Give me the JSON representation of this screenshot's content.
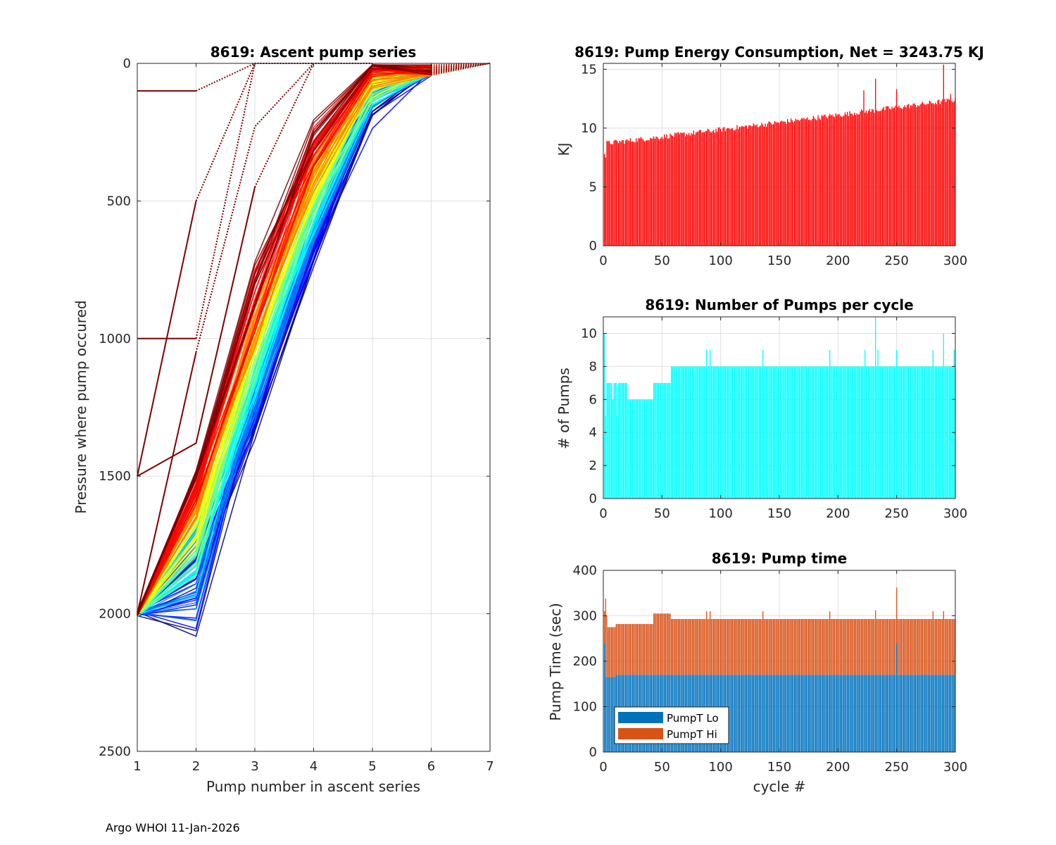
{
  "footer": "Argo WHOI 11-Jan-2026",
  "chart_data": [
    {
      "type": "line",
      "title": "8619: Ascent pump series",
      "xlabel": "Pump number in ascent series",
      "ylabel": "Pressure where pump occured",
      "xlim": [
        1,
        7
      ],
      "ylim": [
        0,
        2500
      ],
      "y_reversed": true,
      "xticks": [
        "1",
        "2",
        "3",
        "4",
        "5",
        "6",
        "7"
      ],
      "yticks": [
        "0",
        "500",
        "1000",
        "1500",
        "2000",
        "2500"
      ],
      "colormap": "jet (colored by cycle number)",
      "series": [
        {
          "name": "dark-red-a",
          "color": "#800000",
          "x": [
            1,
            2,
            3
          ],
          "y": [
            100,
            100,
            0
          ],
          "dotted_from": 2
        },
        {
          "name": "dark-red-b",
          "color": "#800000",
          "x": [
            1,
            2,
            3
          ],
          "y": [
            1000,
            1000,
            0
          ],
          "dotted_from": 2
        },
        {
          "name": "dark-red-c",
          "color": "#800000",
          "x": [
            1,
            2,
            3,
            4
          ],
          "y": [
            1500,
            500,
            0,
            0
          ],
          "dotted_from": 2
        },
        {
          "name": "dark-red-d",
          "color": "#800000",
          "x": [
            1,
            2,
            3,
            4
          ],
          "y": [
            1500,
            1380,
            450,
            0
          ],
          "dotted_from": 3
        },
        {
          "name": "dark-red-e",
          "color": "#800000",
          "x": [
            1,
            2,
            3,
            4,
            5
          ],
          "y": [
            2000,
            1050,
            230,
            0,
            0
          ],
          "dotted_from": 2
        }
      ],
      "band_color_stops": [
        "#00007f",
        "#0000ff",
        "#007fff",
        "#00ffff",
        "#7fff7f",
        "#ffff00",
        "#ff7f00",
        "#ff0000",
        "#7f0000"
      ]
    },
    {
      "type": "bar",
      "title": "8619: Pump Energy Consumption,  Net = 3243.75 KJ",
      "xlabel": "",
      "ylabel": "KJ",
      "xlim": [
        0,
        300
      ],
      "ylim": [
        0,
        15.5
      ],
      "xticks": [
        "0",
        "50",
        "100",
        "150",
        "200",
        "250",
        "300"
      ],
      "yticks": [
        "0",
        "5",
        "10",
        "15"
      ],
      "color": "#ff0000",
      "n_bars": 300,
      "trend": {
        "start": 8.7,
        "end": 12.4
      },
      "notable": [
        {
          "x": 1,
          "v": 7.8
        },
        {
          "x": 2,
          "v": 7.5
        },
        {
          "x": 222,
          "v": 13.2
        },
        {
          "x": 232,
          "v": 14.2
        },
        {
          "x": 250,
          "v": 13.3
        },
        {
          "x": 290,
          "v": 15.4
        },
        {
          "x": 296,
          "v": 12.9
        }
      ]
    },
    {
      "type": "bar",
      "title": "8619: Number of Pumps per cycle",
      "xlabel": "",
      "ylabel": "# of Pumps",
      "xlim": [
        0,
        300
      ],
      "ylim": [
        0,
        11
      ],
      "xticks": [
        "0",
        "50",
        "100",
        "150",
        "200",
        "250",
        "300"
      ],
      "yticks": [
        "0",
        "2",
        "4",
        "6",
        "8",
        "10"
      ],
      "color": "#00ffff",
      "n_bars": 300,
      "segments": [
        {
          "from": 1,
          "to": 20,
          "value": 7
        },
        {
          "from": 21,
          "to": 42,
          "value": 6
        },
        {
          "from": 43,
          "to": 57,
          "value": 7
        },
        {
          "from": 58,
          "to": 300,
          "value": 8
        }
      ],
      "notable": [
        {
          "x": 1,
          "v": 10
        },
        {
          "x": 2,
          "v": 5
        },
        {
          "x": 8,
          "v": 6
        },
        {
          "x": 12,
          "v": 5
        },
        {
          "x": 88,
          "v": 9
        },
        {
          "x": 91,
          "v": 9
        },
        {
          "x": 136,
          "v": 9
        },
        {
          "x": 193,
          "v": 9
        },
        {
          "x": 223,
          "v": 9
        },
        {
          "x": 232,
          "v": 11
        },
        {
          "x": 234,
          "v": 9
        },
        {
          "x": 250,
          "v": 9
        },
        {
          "x": 281,
          "v": 9
        },
        {
          "x": 290,
          "v": 10
        },
        {
          "x": 299,
          "v": 9
        }
      ]
    },
    {
      "type": "bar",
      "title": "8619: Pump time",
      "xlabel": "cycle #",
      "ylabel": "Pump Time (sec)",
      "xlim": [
        0,
        300
      ],
      "ylim": [
        0,
        400
      ],
      "xticks": [
        "0",
        "50",
        "100",
        "150",
        "200",
        "250",
        "300"
      ],
      "yticks": [
        "0",
        "100",
        "200",
        "300",
        "400"
      ],
      "stacked": true,
      "legend": [
        "PumpT Lo",
        "PumpT Hi"
      ],
      "legend_position": "lower-left",
      "colors": [
        "#0072bd",
        "#d95319"
      ],
      "lo_base": 170,
      "total_segments": [
        {
          "from": 1,
          "to": 10,
          "value": 275
        },
        {
          "from": 11,
          "to": 42,
          "value": 282
        },
        {
          "from": 43,
          "to": 57,
          "value": 305
        },
        {
          "from": 58,
          "to": 300,
          "value": 293
        }
      ],
      "notable_total": [
        {
          "x": 1,
          "v": 310
        },
        {
          "x": 2,
          "v": 338
        },
        {
          "x": 3,
          "v": 300
        },
        {
          "x": 88,
          "v": 310
        },
        {
          "x": 91,
          "v": 310
        },
        {
          "x": 136,
          "v": 310
        },
        {
          "x": 193,
          "v": 310
        },
        {
          "x": 232,
          "v": 312
        },
        {
          "x": 250,
          "v": 362
        },
        {
          "x": 281,
          "v": 310
        },
        {
          "x": 290,
          "v": 310
        }
      ],
      "notable_lo": [
        {
          "x": 1,
          "v": 240
        },
        {
          "x": 250,
          "v": 240
        }
      ]
    }
  ]
}
